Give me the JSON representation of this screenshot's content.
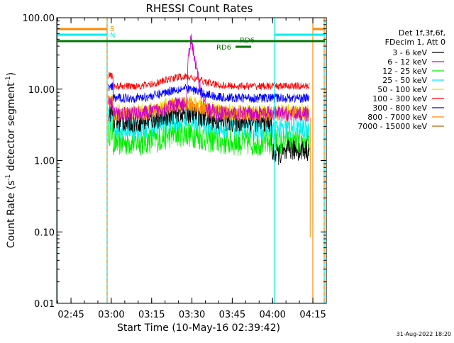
{
  "chart_data": {
    "type": "line",
    "title": "RHESSI Count Rates",
    "xlabel": "Start Time (10-May-16 02:39:42)",
    "ylabel_main": "Count Rate (s",
    "ylabel_sup": "-1",
    "ylabel_rest": " detector segment",
    "ylabel_sup2": "-1",
    "ylabel_close": ")",
    "yscale": "log",
    "ylim": [
      0.01,
      100
    ],
    "xlim": [
      "02:39:42",
      "04:20:00"
    ],
    "x_tick_labels": [
      "02:45",
      "03:00",
      "03:15",
      "03:30",
      "03:45",
      "04:00",
      "04:15"
    ],
    "x_tick_minutes": [
      5.3,
      20.3,
      35.3,
      50.3,
      65.3,
      80.3,
      95.3
    ],
    "y_tick_labels": [
      "100.00",
      "10.00",
      "1.00",
      "0.10",
      "0.01"
    ],
    "y_tick_values": [
      100,
      10,
      1,
      0.1,
      0.01
    ],
    "legend_header": [
      "Det 1f,3f,6f,",
      "FDecim 1, Att 0"
    ],
    "legend_position": "right",
    "series": [
      {
        "name": "3 - 6 keV",
        "color": "#000000",
        "approx_level": 3.5
      },
      {
        "name": "6 - 12 keV",
        "color": "#cc00cc",
        "approx_level": 4.5,
        "peak": 50
      },
      {
        "name": "12 - 25 keV",
        "color": "#00ee00",
        "approx_level": 1.8
      },
      {
        "name": "25 - 50 keV",
        "color": "#00eeee",
        "approx_level": 2.8
      },
      {
        "name": "50 - 100 keV",
        "color": "#eedd00",
        "approx_level": 4.8
      },
      {
        "name": "100 - 300 keV",
        "color": "#ff0000",
        "approx_level": 11
      },
      {
        "name": "300 - 800 keV",
        "color": "#0000ff",
        "approx_level": 7.5
      },
      {
        "name": "800 - 7000 keV",
        "color": "#ff8800",
        "approx_level": 4.5
      },
      {
        "name": "7000 - 15000 keV",
        "color": "#bb6600",
        "approx_level": null
      }
    ],
    "flags": [
      {
        "label": "S",
        "color": "#ff8800"
      },
      {
        "label": "N",
        "color": "#00eeee"
      },
      {
        "label": "RD6",
        "color": "#007700"
      },
      {
        "label": "RD6",
        "color": "#007700"
      }
    ]
  },
  "footer_date": "31-Aug-2022 18:20"
}
